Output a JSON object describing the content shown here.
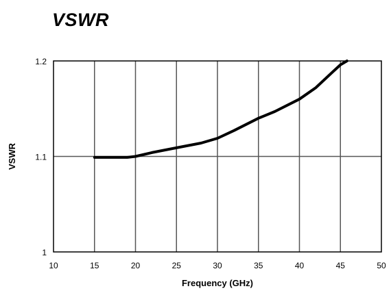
{
  "chart_data": {
    "type": "line",
    "title": "VSWR",
    "xlabel": "Frequency (GHz)",
    "ylabel": "VSWR",
    "xlim": [
      10,
      50
    ],
    "ylim": [
      1,
      1.2
    ],
    "x_ticks": [
      10,
      15,
      20,
      25,
      30,
      35,
      40,
      45,
      50
    ],
    "y_ticks": [
      1,
      1.1,
      1.2
    ],
    "y_tick_labels": [
      "1",
      "1.1",
      "1.2"
    ],
    "grid": true,
    "series": [
      {
        "x": [
          15,
          17,
          19,
          20,
          22,
          25,
          28,
          30,
          32,
          35,
          37,
          40,
          42,
          44,
          45,
          45.8
        ],
        "y": [
          1.099,
          1.099,
          1.099,
          1.1,
          1.104,
          1.109,
          1.114,
          1.119,
          1.127,
          1.14,
          1.147,
          1.16,
          1.172,
          1.188,
          1.196,
          1.2
        ]
      }
    ]
  }
}
